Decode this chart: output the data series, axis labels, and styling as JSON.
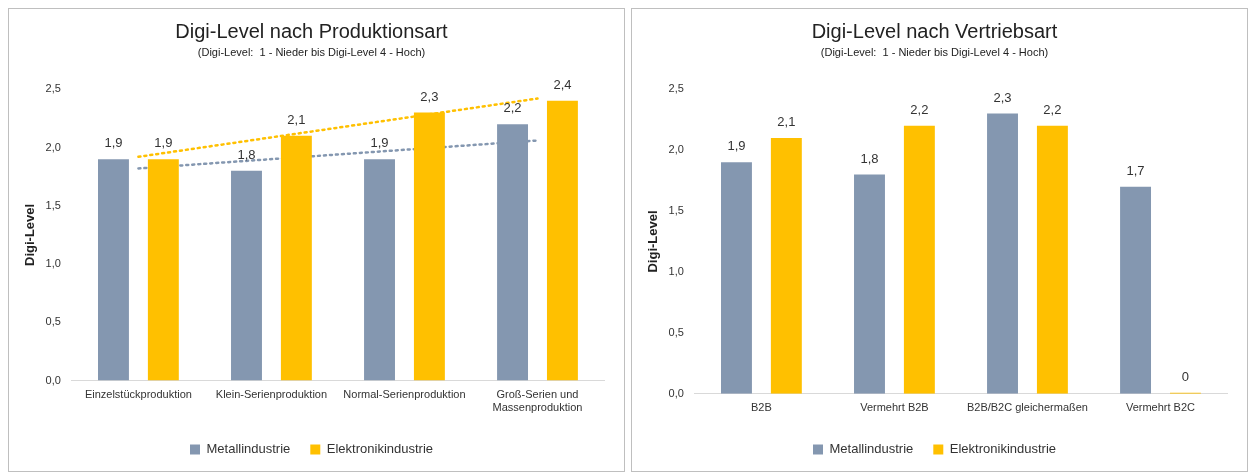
{
  "chart_data": [
    {
      "type": "bar",
      "title": "Digi-Level nach Produktionsart",
      "subtitle": "(Digi-Level:  1 - Nieder bis Digi-Level 4 - Hoch)",
      "ylabel": "Digi-Level",
      "categories": [
        "Einzelstückproduktion",
        "Klein-Serienproduktion",
        "Normal-Serienproduktion",
        "Groß-Serien und Massenproduktion"
      ],
      "series": [
        {
          "name": "Metallindustrie",
          "color": "#8497b0",
          "values": [
            1.9,
            1.8,
            1.9,
            2.2
          ],
          "value_labels": [
            "1,9",
            "1,8",
            "1,9",
            "2,2"
          ]
        },
        {
          "name": "Elektronikindustrie",
          "color": "#ffc000",
          "values": [
            1.9,
            2.1,
            2.3,
            2.4
          ],
          "value_labels": [
            "1,9",
            "2,1",
            "2,3",
            "2,4"
          ]
        },
        {
          "type": "line",
          "color": "#8497b0",
          "line_style": "dotted",
          "x": [
            "Einzelstückproduktion",
            "Groß-Serien und Massenproduktion"
          ],
          "values": [
            1.82,
            2.06
          ]
        },
        {
          "type": "line",
          "color": "#ffc000",
          "line_style": "dotted",
          "x": [
            "Einzelstückproduktion",
            "Groß-Serien und Massenproduktion"
          ],
          "values": [
            1.92,
            2.42
          ]
        }
      ],
      "ylim": [
        0,
        2.5
      ],
      "yticks": [
        {
          "value": 0,
          "label": "0,0"
        },
        {
          "value": 0.5,
          "label": "0,5"
        },
        {
          "value": 1,
          "label": "1,0"
        },
        {
          "value": 1.5,
          "label": "1,5"
        },
        {
          "value": 2,
          "label": "2,0"
        },
        {
          "value": 2.5,
          "label": "2,5"
        }
      ],
      "legend": "bottom"
    },
    {
      "type": "bar",
      "title": "Digi-Level nach Vertriebsart",
      "subtitle": "(Digi-Level:  1 - Nieder bis Digi-Level 4 - Hoch)",
      "ylabel": "Digi-Level",
      "categories": [
        "B2B",
        "Vermehrt B2B",
        "B2B/B2C gleichermaßen",
        "Vermehrt B2C"
      ],
      "series": [
        {
          "name": "Metallindustrie",
          "color": "#8497b0",
          "values": [
            1.9,
            1.8,
            2.3,
            1.7
          ],
          "value_labels": [
            "1,9",
            "1,8",
            "2,3",
            "1,7"
          ]
        },
        {
          "name": "Elektronikindustrie",
          "color": "#ffc000",
          "values": [
            2.1,
            2.2,
            2.2,
            0
          ],
          "value_labels": [
            "2,1",
            "2,2",
            "2,2",
            "0"
          ]
        }
      ],
      "ylim": [
        0,
        2.5
      ],
      "yticks": [
        {
          "value": 0,
          "label": "0,0"
        },
        {
          "value": 0.5,
          "label": "0,5"
        },
        {
          "value": 1,
          "label": "1,0"
        },
        {
          "value": 1.5,
          "label": "1,5"
        },
        {
          "value": 2,
          "label": "2,0"
        },
        {
          "value": 2.5,
          "label": "2,5"
        }
      ],
      "legend": "bottom"
    }
  ]
}
